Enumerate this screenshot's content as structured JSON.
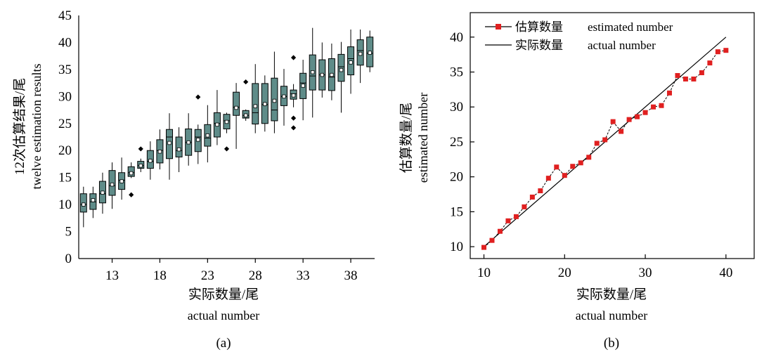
{
  "panels": {
    "a": {
      "label": "(a)"
    },
    "b": {
      "label": "(b)"
    }
  },
  "chart_data": [
    {
      "type": "box",
      "ylabel_line1": "12次估算结果/尾",
      "ylabel_line2": "twelve estimation results",
      "xlabel_line1": "实际数量/尾",
      "xlabel_line2": "actual number",
      "ylim": [
        0,
        45
      ],
      "xlim": [
        9.5,
        40.5
      ],
      "yticks": [
        0,
        5,
        10,
        15,
        20,
        25,
        30,
        35,
        40,
        45
      ],
      "xticks": [
        13,
        18,
        23,
        28,
        33,
        38
      ],
      "colors": {
        "box_fill": "#5f8c89",
        "mean_marker": "#ffffff"
      },
      "boxes": [
        {
          "x": 10,
          "min": 5.8,
          "q1": 8.6,
          "median": 10.0,
          "q3": 12.0,
          "max": 13.3,
          "mean": 10.0,
          "outliers": []
        },
        {
          "x": 11,
          "min": 7.5,
          "q1": 9.1,
          "median": 10.5,
          "q3": 12.0,
          "max": 13.3,
          "mean": 10.8,
          "outliers": []
        },
        {
          "x": 12,
          "min": 8.3,
          "q1": 10.3,
          "median": 12.0,
          "q3": 14.3,
          "max": 15.9,
          "mean": 12.2,
          "outliers": []
        },
        {
          "x": 13,
          "min": 9.2,
          "q1": 11.7,
          "median": 13.5,
          "q3": 16.3,
          "max": 17.8,
          "mean": 13.7,
          "outliers": []
        },
        {
          "x": 14,
          "min": 10.9,
          "q1": 12.8,
          "median": 14.5,
          "q3": 15.9,
          "max": 18.7,
          "mean": 14.3,
          "outliers": []
        },
        {
          "x": 15,
          "min": 14.9,
          "q1": 15.2,
          "median": 15.9,
          "q3": 17.0,
          "max": 17.8,
          "mean": 15.8,
          "outliers": [
            11.8
          ]
        },
        {
          "x": 16,
          "min": 16.0,
          "q1": 16.7,
          "median": 17.2,
          "q3": 18.0,
          "max": 18.5,
          "mean": 17.2,
          "outliers": [
            20.3
          ]
        },
        {
          "x": 17,
          "min": 14.6,
          "q1": 16.7,
          "median": 18.0,
          "q3": 20.0,
          "max": 21.7,
          "mean": 18.1,
          "outliers": []
        },
        {
          "x": 18,
          "min": 16.5,
          "q1": 17.7,
          "median": 20.0,
          "q3": 22.0,
          "max": 23.9,
          "mean": 19.8,
          "outliers": []
        },
        {
          "x": 19,
          "min": 14.6,
          "q1": 18.5,
          "median": 22.5,
          "q3": 23.9,
          "max": 26.9,
          "mean": 21.4,
          "outliers": []
        },
        {
          "x": 20,
          "min": 16.0,
          "q1": 18.8,
          "median": 20.0,
          "q3": 22.5,
          "max": 24.3,
          "mean": 20.2,
          "outliers": []
        },
        {
          "x": 21,
          "min": 17.2,
          "q1": 19.1,
          "median": 21.5,
          "q3": 24.0,
          "max": 26.9,
          "mean": 21.5,
          "outliers": []
        },
        {
          "x": 22,
          "min": 17.5,
          "q1": 19.8,
          "median": 22.5,
          "q3": 23.9,
          "max": 24.8,
          "mean": 22.0,
          "outliers": [
            29.9
          ]
        },
        {
          "x": 23,
          "min": 17.8,
          "q1": 20.8,
          "median": 22.3,
          "q3": 24.8,
          "max": 28.4,
          "mean": 22.8,
          "outliers": []
        },
        {
          "x": 24,
          "min": 21.0,
          "q1": 22.5,
          "median": 25.0,
          "q3": 27.0,
          "max": 31.2,
          "mean": 24.8,
          "outliers": []
        },
        {
          "x": 25,
          "min": 23.2,
          "q1": 24.0,
          "median": 25.5,
          "q3": 26.7,
          "max": 27.0,
          "mean": 25.3,
          "outliers": [
            20.3
          ]
        },
        {
          "x": 26,
          "min": 20.3,
          "q1": 26.5,
          "median": 28.0,
          "q3": 30.8,
          "max": 32.5,
          "mean": 27.9,
          "outliers": []
        },
        {
          "x": 27,
          "min": 25.5,
          "q1": 26.0,
          "median": 26.5,
          "q3": 27.4,
          "max": 27.6,
          "mean": 26.5,
          "outliers": [
            32.7
          ]
        },
        {
          "x": 28,
          "min": 23.2,
          "q1": 24.9,
          "median": 27.0,
          "q3": 32.4,
          "max": 36.0,
          "mean": 28.2,
          "outliers": []
        },
        {
          "x": 29,
          "min": 23.5,
          "q1": 25.0,
          "median": 28.5,
          "q3": 32.4,
          "max": 33.9,
          "mean": 28.6,
          "outliers": []
        },
        {
          "x": 30,
          "min": 23.2,
          "q1": 25.5,
          "median": 27.5,
          "q3": 33.4,
          "max": 38.3,
          "mean": 29.2,
          "outliers": []
        },
        {
          "x": 31,
          "min": 24.6,
          "q1": 28.3,
          "median": 30.0,
          "q3": 31.9,
          "max": 35.1,
          "mean": 30.0,
          "outliers": []
        },
        {
          "x": 32,
          "min": 28.0,
          "q1": 29.5,
          "median": 30.5,
          "q3": 31.2,
          "max": 32.3,
          "mean": 30.2,
          "outliers": [
            26.0,
            24.2,
            37.2
          ]
        },
        {
          "x": 33,
          "min": 25.6,
          "q1": 29.6,
          "median": 32.5,
          "q3": 34.3,
          "max": 36.8,
          "mean": 32.0,
          "outliers": []
        },
        {
          "x": 34,
          "min": 26.1,
          "q1": 31.2,
          "median": 33.8,
          "q3": 37.7,
          "max": 42.7,
          "mean": 34.5,
          "outliers": []
        },
        {
          "x": 35,
          "min": 29.8,
          "q1": 31.2,
          "median": 34.0,
          "q3": 36.8,
          "max": 40.0,
          "mean": 34.0,
          "outliers": []
        },
        {
          "x": 36,
          "min": 29.3,
          "q1": 31.1,
          "median": 33.6,
          "q3": 37.0,
          "max": 39.8,
          "mean": 34.0,
          "outliers": []
        },
        {
          "x": 37,
          "min": 27.0,
          "q1": 32.8,
          "median": 35.5,
          "q3": 37.8,
          "max": 40.1,
          "mean": 34.9,
          "outliers": []
        },
        {
          "x": 38,
          "min": 30.5,
          "q1": 34.0,
          "median": 37.0,
          "q3": 39.2,
          "max": 42.4,
          "mean": 36.3,
          "outliers": []
        },
        {
          "x": 39,
          "min": 32.5,
          "q1": 35.8,
          "median": 38.5,
          "q3": 40.5,
          "max": 42.4,
          "mean": 37.9,
          "outliers": []
        },
        {
          "x": 40,
          "min": 34.5,
          "q1": 35.5,
          "median": 38.0,
          "q3": 41.0,
          "max": 42.2,
          "mean": 38.1,
          "outliers": []
        }
      ]
    },
    {
      "type": "line",
      "ylabel_line1": "估算数量/尾",
      "ylabel_line2": "estimated number",
      "xlabel_line1": "实际数量/尾",
      "xlabel_line2": "actual number",
      "xlim": [
        8.3,
        43.5
      ],
      "ylim": [
        8.3,
        43.5
      ],
      "xticks": [
        10,
        20,
        30,
        40
      ],
      "yticks": [
        10,
        15,
        20,
        25,
        30,
        35,
        40
      ],
      "legend_position": "top-left",
      "colors": {
        "estimated": "#e02020",
        "actual": "#000000"
      },
      "series": [
        {
          "name_zh": "估算数量",
          "name_en": "estimated number",
          "marker": "square",
          "x": [
            10,
            11,
            12,
            13,
            14,
            15,
            16,
            17,
            18,
            19,
            20,
            21,
            22,
            23,
            24,
            25,
            26,
            27,
            28,
            29,
            30,
            31,
            32,
            33,
            34,
            35,
            36,
            37,
            38,
            39,
            40
          ],
          "y": [
            9.9,
            10.9,
            12.2,
            13.7,
            14.3,
            15.7,
            17.1,
            18.0,
            19.8,
            21.4,
            20.2,
            21.5,
            22.0,
            22.8,
            24.8,
            25.3,
            27.9,
            26.5,
            28.2,
            28.6,
            29.2,
            30.0,
            30.2,
            32.0,
            34.5,
            34.0,
            34.0,
            34.9,
            36.3,
            37.9,
            38.1
          ]
        },
        {
          "name_zh": "实际数量",
          "name_en": "actual number",
          "marker": "none",
          "x": [
            10,
            40
          ],
          "y": [
            10,
            40
          ]
        }
      ]
    }
  ]
}
